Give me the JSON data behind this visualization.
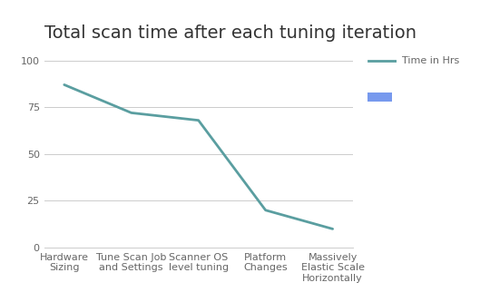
{
  "title": "Total scan time after each tuning iteration",
  "categories": [
    "Hardware\nSizing",
    "Tune Scan Job\nand Settings",
    "Scanner OS\nlevel tuning",
    "Platform\nChanges",
    "Massively\nElastic Scale\nHorizontally"
  ],
  "values": [
    87,
    72,
    68,
    20,
    10
  ],
  "line_color": "#5a9ea0",
  "line_width": 2.0,
  "ylim": [
    0,
    100
  ],
  "yticks": [
    0,
    25,
    50,
    75,
    100
  ],
  "legend_label": "Time in Hrs",
  "legend_line_color": "#5a9ea0",
  "legend_patch_color": "#7799ee",
  "background_color": "#ffffff",
  "grid_color": "#cccccc",
  "title_fontsize": 14,
  "tick_fontsize": 8,
  "legend_fontsize": 8,
  "tick_label_color": "#666666",
  "title_color": "#333333"
}
